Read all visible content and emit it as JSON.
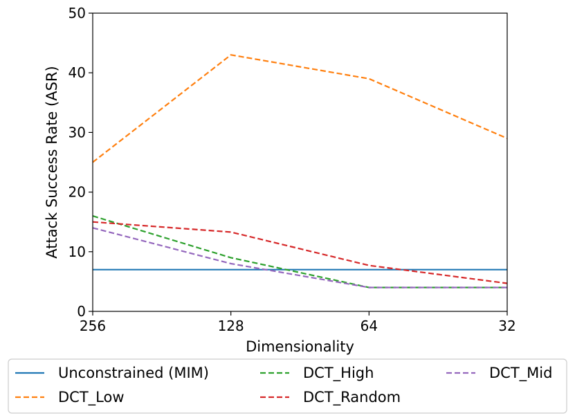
{
  "chart_data": {
    "type": "line",
    "xlabel": "Dimensionality",
    "ylabel": "Attack Success Rate (ASR)",
    "categories": [
      "256",
      "128",
      "64",
      "32"
    ],
    "ylim": [
      0,
      50
    ],
    "yticks": [
      "0",
      "10",
      "20",
      "30",
      "40",
      "50"
    ],
    "legend_position": "bottom",
    "grid": false,
    "series": [
      {
        "name": "Unconstrained (MIM)",
        "color": "#1f77b4",
        "dash": "solid",
        "values": [
          7,
          7,
          7,
          7
        ]
      },
      {
        "name": "DCT_Low",
        "color": "#ff7f0e",
        "dash": "dashed",
        "values": [
          25,
          43,
          39,
          29
        ]
      },
      {
        "name": "DCT_High",
        "color": "#2ca02c",
        "dash": "dashed",
        "values": [
          16,
          9,
          4,
          4
        ]
      },
      {
        "name": "DCT_Random",
        "color": "#d62728",
        "dash": "dashed",
        "values": [
          15,
          13.3,
          7.7,
          4.7
        ]
      },
      {
        "name": "DCT_Mid",
        "color": "#9467bd",
        "dash": "dashed",
        "values": [
          14,
          8,
          4,
          4
        ]
      }
    ]
  }
}
